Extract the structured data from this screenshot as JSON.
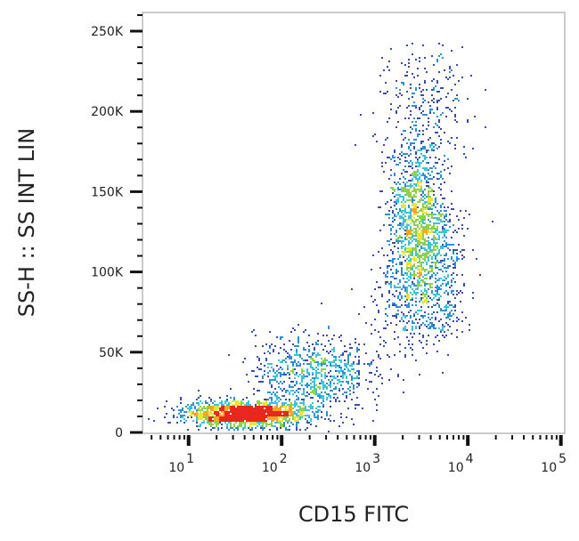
{
  "chart_data": {
    "type": "scatter",
    "subtype": "flow-cytometry-density-dot-plot",
    "xlabel": "CD15 FITC",
    "ylabel": "SS-H :: SS INT LIN",
    "x_scale": "log",
    "xlim": [
      3.2,
      110000
    ],
    "ylim": [
      0,
      262000
    ],
    "x_ticks": [
      {
        "value": 10,
        "base": "10",
        "exp": "1"
      },
      {
        "value": 100,
        "base": "10",
        "exp": "2"
      },
      {
        "value": 1000,
        "base": "10",
        "exp": "3"
      },
      {
        "value": 10000,
        "base": "10",
        "exp": "4"
      },
      {
        "value": 100000,
        "base": "10",
        "exp": "5"
      }
    ],
    "y_ticks": [
      {
        "value": 0,
        "label": "0"
      },
      {
        "value": 50000,
        "label": "50K"
      },
      {
        "value": 100000,
        "label": "100K"
      },
      {
        "value": 150000,
        "label": "150K"
      },
      {
        "value": 200000,
        "label": "200K"
      },
      {
        "value": 250000,
        "label": "250K"
      }
    ],
    "grid": false,
    "density_colors": [
      "#3b4ea6",
      "#2f8fd0",
      "#3cc4d6",
      "#8fd14f",
      "#e8e43a",
      "#f5a623",
      "#e8281e"
    ],
    "populations": [
      {
        "x_center": 40,
        "x_spread_decades": 0.33,
        "y_center": 12000,
        "y_spread": 4000,
        "events": 1700
      },
      {
        "x_center": 200,
        "x_spread_decades": 0.3,
        "y_center": 38000,
        "y_spread": 12000,
        "events": 650
      },
      {
        "x_center": 2800,
        "x_spread_decades": 0.15,
        "y_center": 125000,
        "y_spread": 30000,
        "events": 1900
      },
      {
        "x_center": 3500,
        "x_spread_decades": 0.28,
        "y_center": 205000,
        "y_spread": 22000,
        "events": 250
      }
    ]
  }
}
